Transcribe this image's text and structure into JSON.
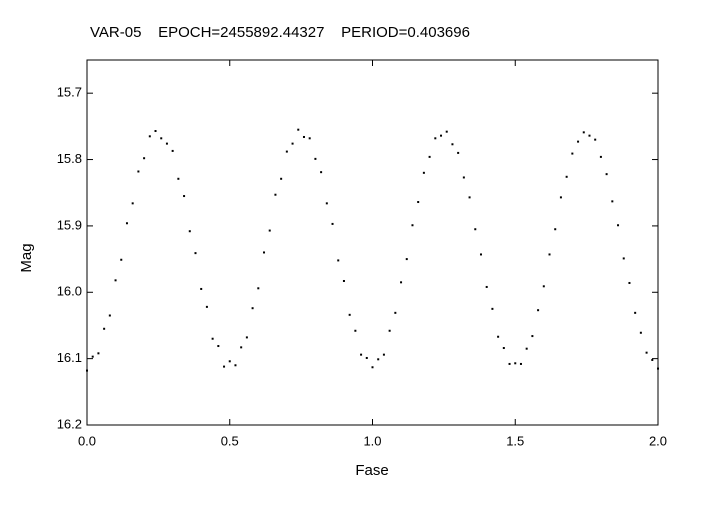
{
  "chart_data": {
    "type": "scatter",
    "title": "VAR-05    EPOCH=2455892.44327    PERIOD=0.403696",
    "x_label": "Fase",
    "y_label": "Mag",
    "color": "#000000",
    "y_inverted": true,
    "xlim": [
      0,
      2
    ],
    "ylim": [
      15.65,
      16.2
    ],
    "xticks": [
      {
        "value": 0,
        "label": "0.0"
      },
      0.5,
      {
        "value": 1,
        "label": "1.0"
      },
      1.5,
      {
        "value": 2,
        "label": "2.0"
      }
    ],
    "yticks": [
      15.7,
      15.8,
      15.9,
      {
        "value": 16,
        "label": "16.0"
      },
      16.1,
      16.2
    ],
    "x": [
      0,
      0.02,
      0.04,
      0.06,
      0.08,
      0.1,
      0.12,
      0.14,
      0.16,
      0.18,
      0.2,
      0.22,
      0.24,
      0.26,
      0.28,
      0.3,
      0.32,
      0.34,
      0.36,
      0.38,
      0.4,
      0.42,
      0.44,
      0.46,
      0.48,
      0.5,
      0.52,
      0.54,
      0.56,
      0.58,
      0.6,
      0.62,
      0.64,
      0.66,
      0.68,
      0.7,
      0.72,
      0.74,
      0.76,
      0.78,
      0.8,
      0.82,
      0.84,
      0.86,
      0.88,
      0.9,
      0.92,
      0.94,
      0.96,
      0.98,
      1,
      1.02,
      1.04,
      1.06,
      1.08,
      1.1,
      1.12,
      1.14,
      1.16,
      1.18,
      1.2,
      1.22,
      1.24,
      1.26,
      1.28,
      1.3,
      1.32,
      1.34,
      1.36,
      1.38,
      1.4,
      1.42,
      1.44,
      1.46,
      1.48,
      1.5,
      1.52,
      1.54,
      1.56,
      1.58,
      1.6,
      1.62,
      1.64,
      1.66,
      1.68,
      1.7,
      1.72,
      1.74,
      1.76,
      1.78,
      1.8,
      1.82,
      1.84,
      1.86,
      1.88,
      1.9,
      1.92,
      1.94,
      1.96,
      1.98,
      2
    ],
    "values": [
      16.118,
      16.097,
      16.092,
      16.055,
      16.035,
      15.982,
      15.951,
      15.896,
      15.866,
      15.818,
      15.798,
      15.765,
      15.757,
      15.768,
      15.776,
      15.787,
      15.829,
      15.855,
      15.908,
      15.941,
      15.995,
      16.022,
      16.07,
      16.081,
      16.112,
      16.104,
      16.11,
      16.083,
      16.068,
      16.024,
      15.994,
      15.94,
      15.907,
      15.853,
      15.829,
      15.788,
      15.776,
      15.755,
      15.766,
      15.768,
      15.799,
      15.819,
      15.866,
      15.897,
      15.952,
      15.983,
      16.034,
      16.058,
      16.094,
      16.099,
      16.113,
      16.101,
      16.094,
      16.058,
      16.031,
      15.985,
      15.95,
      15.899,
      15.864,
      15.82,
      15.796,
      15.768,
      15.764,
      15.758,
      15.777,
      15.79,
      15.827,
      15.857,
      15.905,
      15.943,
      15.992,
      16.025,
      16.067,
      16.084,
      16.108,
      16.107,
      16.108,
      16.085,
      16.066,
      16.027,
      15.991,
      15.943,
      15.905,
      15.857,
      15.826,
      15.791,
      15.773,
      15.759,
      15.764,
      15.77,
      15.796,
      15.822,
      15.863,
      15.899,
      15.949,
      15.986,
      16.031,
      16.061,
      16.091,
      16.102,
      16.115
    ]
  }
}
